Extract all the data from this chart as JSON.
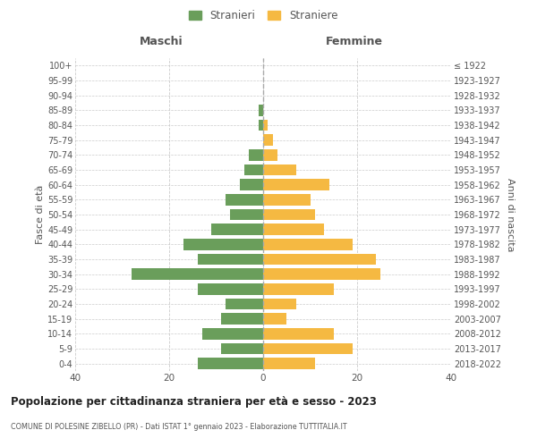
{
  "age_groups": [
    "0-4",
    "5-9",
    "10-14",
    "15-19",
    "20-24",
    "25-29",
    "30-34",
    "35-39",
    "40-44",
    "45-49",
    "50-54",
    "55-59",
    "60-64",
    "65-69",
    "70-74",
    "75-79",
    "80-84",
    "85-89",
    "90-94",
    "95-99",
    "100+"
  ],
  "birth_years": [
    "2018-2022",
    "2013-2017",
    "2008-2012",
    "2003-2007",
    "1998-2002",
    "1993-1997",
    "1988-1992",
    "1983-1987",
    "1978-1982",
    "1973-1977",
    "1968-1972",
    "1963-1967",
    "1958-1962",
    "1953-1957",
    "1948-1952",
    "1943-1947",
    "1938-1942",
    "1933-1937",
    "1928-1932",
    "1923-1927",
    "≤ 1922"
  ],
  "males": [
    14,
    9,
    13,
    9,
    8,
    14,
    28,
    14,
    17,
    11,
    7,
    8,
    5,
    4,
    3,
    0,
    1,
    1,
    0,
    0,
    0
  ],
  "females": [
    11,
    19,
    15,
    5,
    7,
    15,
    25,
    24,
    19,
    13,
    11,
    10,
    14,
    7,
    3,
    2,
    1,
    0,
    0,
    0,
    0
  ],
  "male_color": "#6a9e5b",
  "female_color": "#f5b942",
  "bar_height": 0.75,
  "xlim": [
    -40,
    40
  ],
  "xlabel_left": "Maschi",
  "xlabel_right": "Femmine",
  "ylabel_left": "Fasce di età",
  "ylabel_right": "Anni di nascita",
  "legend_male": "Stranieri",
  "legend_female": "Straniere",
  "title": "Popolazione per cittadinanza straniera per età e sesso - 2023",
  "subtitle": "COMUNE DI POLESINE ZIBELLO (PR) - Dati ISTAT 1° gennaio 2023 - Elaborazione TUTTITALIA.IT",
  "background_color": "#ffffff",
  "grid_color": "#cccccc",
  "text_color": "#555555",
  "xticks": [
    -40,
    -20,
    0,
    20,
    40
  ],
  "centerline_color": "#aaaaaa"
}
